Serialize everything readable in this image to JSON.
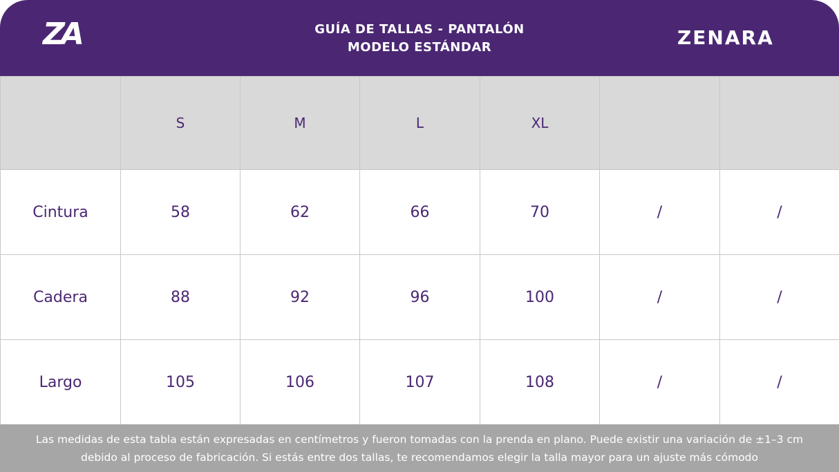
{
  "header": {
    "logo": "ZA",
    "title_lines": [
      "GUÍA DE TALLAS - PANTALÓN",
      "MODELO ESTÁNDAR"
    ],
    "brand": "ZENARA"
  },
  "table": {
    "columns": [
      "S",
      "M",
      "L",
      "XL"
    ],
    "rows": [
      [
        "Cintura",
        58,
        62,
        66,
        70,
        "/",
        "/"
      ],
      [
        "Cadera",
        88,
        92,
        96,
        100,
        "/",
        "/"
      ],
      [
        "Largo",
        105,
        106,
        107,
        108,
        "/",
        "/"
      ]
    ]
  },
  "footer": {
    "lines": [
      "Las medidas de esta tabla están expresadas en centímetros y fueron tomadas con la prenda en plano. Puede existir una variación de ±1–3 cm",
      "debido al proceso de fabricación. Si estás entre dos tallas, te recomendamos elegir la talla mayor para un ajuste más cómodo"
    ]
  }
}
